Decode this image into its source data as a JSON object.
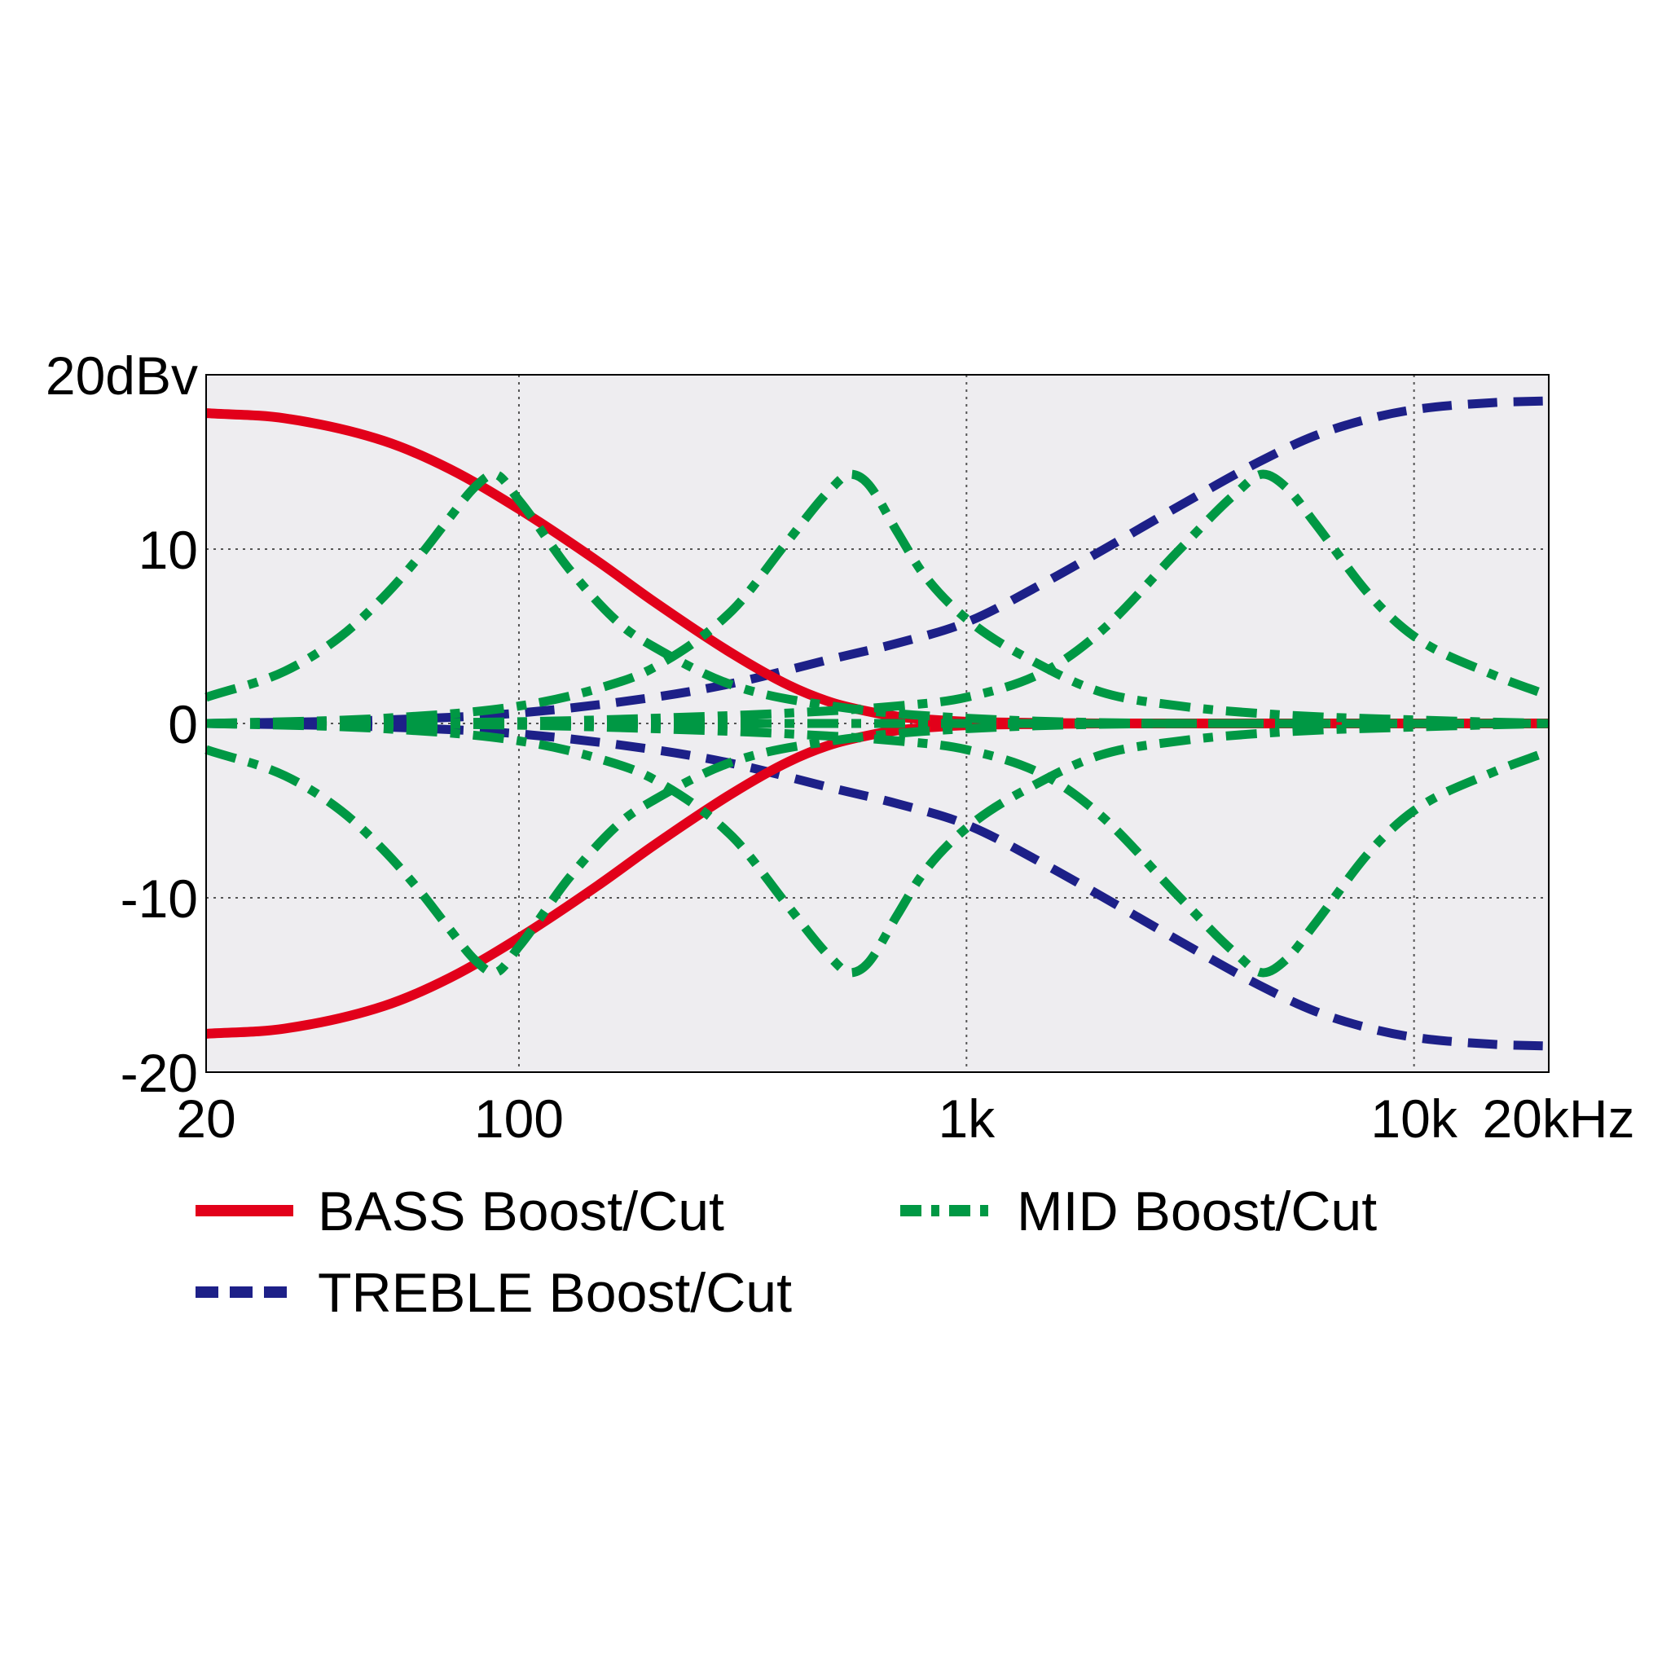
{
  "chart_data": {
    "type": "line",
    "title": "",
    "xlabel": "",
    "ylabel": "",
    "x_scale": "log",
    "xlim": [
      20,
      20000
    ],
    "ylim": [
      -20,
      20
    ],
    "grid": true,
    "plot_background": "#eeedf0",
    "x_ticks": [
      {
        "value": 20,
        "label": "20"
      },
      {
        "value": 100,
        "label": "100"
      },
      {
        "value": 1000,
        "label": "1k"
      },
      {
        "value": 10000,
        "label": "10k"
      },
      {
        "value": 20000,
        "label": "20kHz"
      }
    ],
    "y_ticks": [
      {
        "value": 20,
        "label": "20dBv"
      },
      {
        "value": 10,
        "label": "10"
      },
      {
        "value": 0,
        "label": "0"
      },
      {
        "value": -10,
        "label": "-10"
      },
      {
        "value": -20,
        "label": "-20"
      }
    ],
    "legend": {
      "placement": "bottom",
      "entries": [
        {
          "label": "BASS Boost/Cut",
          "style": "solid",
          "color": "#e2001a"
        },
        {
          "label": "MID Boost/Cut",
          "style": "dash-dot",
          "color": "#009844"
        },
        {
          "label": "TREBLE Boost/Cut",
          "style": "dashed",
          "color": "#1d2088"
        }
      ]
    },
    "series": [
      {
        "group": "BASS",
        "style": "solid",
        "color": "#e2001a",
        "x": [
          20,
          30,
          50,
          70,
          100,
          150,
          200,
          300,
          400,
          500,
          600,
          700,
          800,
          1000,
          1500,
          2000,
          5000,
          20000
        ],
        "y": [
          17.8,
          17.5,
          16.2,
          14.6,
          12.3,
          9.3,
          7.0,
          4.0,
          2.2,
          1.2,
          0.7,
          0.4,
          0.25,
          0.1,
          0.03,
          0.0,
          0.0,
          0.0
        ]
      },
      {
        "group": "BASS",
        "style": "solid",
        "color": "#e2001a",
        "x": [
          20,
          30,
          50,
          70,
          100,
          150,
          200,
          300,
          400,
          500,
          600,
          700,
          800,
          1000,
          1500,
          2000,
          5000,
          20000
        ],
        "y": [
          -17.8,
          -17.5,
          -16.2,
          -14.6,
          -12.3,
          -9.3,
          -7.0,
          -4.0,
          -2.2,
          -1.2,
          -0.7,
          -0.4,
          -0.25,
          -0.1,
          -0.03,
          0.0,
          0.0,
          0.0
        ]
      },
      {
        "group": "TREBLE",
        "style": "dashed",
        "color": "#1d2088",
        "x": [
          20,
          50,
          100,
          200,
          300,
          500,
          700,
          1000,
          1500,
          2000,
          3000,
          4500,
          6000,
          8000,
          10000,
          15000,
          20000
        ],
        "y": [
          0.0,
          0.2,
          0.6,
          1.5,
          2.3,
          3.7,
          4.6,
          5.8,
          8.1,
          9.9,
          12.5,
          15.0,
          16.5,
          17.5,
          18.0,
          18.4,
          18.5
        ]
      },
      {
        "group": "TREBLE",
        "style": "dashed",
        "color": "#1d2088",
        "x": [
          20,
          50,
          100,
          200,
          300,
          500,
          700,
          1000,
          1500,
          2000,
          3000,
          4500,
          6000,
          8000,
          10000,
          15000,
          20000
        ],
        "y": [
          0.0,
          -0.2,
          -0.6,
          -1.5,
          -2.3,
          -3.7,
          -4.6,
          -5.8,
          -8.1,
          -9.9,
          -12.5,
          -15.0,
          -16.5,
          -17.5,
          -18.0,
          -18.4,
          -18.5
        ]
      },
      {
        "group": "MID",
        "style": "dash-dot",
        "color": "#009844",
        "x": [
          20,
          30,
          40,
          50,
          60,
          70,
          80,
          88,
          100,
          130,
          170,
          200,
          300,
          500,
          1000,
          5000,
          20000
        ],
        "y": [
          1.5,
          3.0,
          5.0,
          7.3,
          9.6,
          11.8,
          13.6,
          14.3,
          12.8,
          8.8,
          5.6,
          4.4,
          2.2,
          1.0,
          0.3,
          0.0,
          0.0
        ]
      },
      {
        "group": "MID",
        "style": "dash-dot",
        "color": "#009844",
        "x": [
          20,
          30,
          40,
          50,
          60,
          70,
          80,
          88,
          100,
          130,
          170,
          200,
          300,
          500,
          1000,
          5000,
          20000
        ],
        "y": [
          -1.5,
          -3.0,
          -5.0,
          -7.3,
          -9.6,
          -11.8,
          -13.6,
          -14.3,
          -12.8,
          -8.8,
          -5.6,
          -4.4,
          -2.2,
          -1.0,
          -0.3,
          0.0,
          0.0
        ]
      },
      {
        "group": "MID",
        "style": "dash-dot",
        "color": "#009844",
        "x": [
          20,
          50,
          100,
          150,
          200,
          300,
          400,
          500,
          550,
          600,
          700,
          800,
          1000,
          1500,
          2000,
          3000,
          5000,
          10000,
          20000
        ],
        "y": [
          0.0,
          0.3,
          1.0,
          2.0,
          3.2,
          6.5,
          10.5,
          13.5,
          14.3,
          13.8,
          11.0,
          8.6,
          6.0,
          3.2,
          1.8,
          1.0,
          0.5,
          0.2,
          0.0
        ]
      },
      {
        "group": "MID",
        "style": "dash-dot",
        "color": "#009844",
        "x": [
          20,
          50,
          100,
          150,
          200,
          300,
          400,
          500,
          550,
          600,
          700,
          800,
          1000,
          1500,
          2000,
          3000,
          5000,
          10000,
          20000
        ],
        "y": [
          0.0,
          -0.3,
          -1.0,
          -2.0,
          -3.2,
          -6.5,
          -10.5,
          -13.5,
          -14.3,
          -13.8,
          -11.0,
          -8.6,
          -6.0,
          -3.2,
          -1.8,
          -1.0,
          -0.5,
          -0.2,
          0.0
        ]
      },
      {
        "group": "MID",
        "style": "dash-dot",
        "color": "#009844",
        "x": [
          20,
          100,
          200,
          400,
          700,
          1000,
          1500,
          2000,
          3000,
          4000,
          4600,
          5200,
          6000,
          8000,
          10000,
          15000,
          20000
        ],
        "y": [
          0.0,
          0.1,
          0.3,
          0.6,
          1.0,
          1.5,
          3.0,
          5.3,
          10.0,
          13.2,
          14.3,
          13.5,
          11.5,
          7.3,
          5.0,
          2.8,
          1.6
        ]
      },
      {
        "group": "MID",
        "style": "dash-dot",
        "color": "#009844",
        "x": [
          20,
          100,
          200,
          400,
          700,
          1000,
          1500,
          2000,
          3000,
          4000,
          4600,
          5200,
          6000,
          8000,
          10000,
          15000,
          20000
        ],
        "y": [
          0.0,
          -0.1,
          -0.3,
          -0.6,
          -1.0,
          -1.5,
          -3.0,
          -5.3,
          -10.0,
          -13.2,
          -14.3,
          -13.5,
          -11.5,
          -7.3,
          -5.0,
          -2.8,
          -1.6
        ]
      },
      {
        "group": "MID",
        "style": "dash-dot",
        "color": "#009844",
        "x": [
          20,
          20000
        ],
        "y": [
          0.0,
          0.0
        ]
      }
    ]
  }
}
